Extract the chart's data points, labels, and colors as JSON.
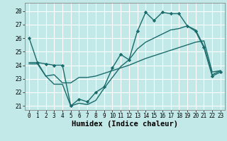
{
  "xlabel": "Humidex (Indice chaleur)",
  "bg_color": "#c2e8e8",
  "grid_color": "#ffffff",
  "line_color": "#1a6b6b",
  "ylim": [
    20.7,
    28.6
  ],
  "xlim": [
    -0.5,
    23.5
  ],
  "yticks": [
    21,
    22,
    23,
    24,
    25,
    26,
    27,
    28
  ],
  "xticks": [
    0,
    1,
    2,
    3,
    4,
    5,
    6,
    7,
    8,
    9,
    10,
    11,
    12,
    13,
    14,
    15,
    16,
    17,
    18,
    19,
    20,
    21,
    22,
    23
  ],
  "line1_x": [
    0,
    1,
    2,
    3,
    4,
    5,
    6,
    7,
    8,
    9,
    10,
    11,
    12,
    13,
    14,
    15,
    16,
    17,
    18,
    19,
    20,
    21,
    22,
    23
  ],
  "line1_y": [
    26.0,
    24.2,
    24.1,
    24.0,
    24.0,
    21.0,
    21.5,
    21.3,
    22.0,
    22.4,
    23.8,
    24.8,
    24.4,
    26.5,
    27.9,
    27.3,
    27.9,
    27.8,
    27.8,
    26.9,
    26.5,
    25.3,
    23.2,
    23.5
  ],
  "line2_x": [
    0,
    1,
    2,
    3,
    4,
    5,
    6,
    7,
    8,
    9,
    10,
    11,
    12,
    13,
    14,
    15,
    16,
    17,
    18,
    19,
    20,
    21,
    22,
    23
  ],
  "line2_y": [
    24.1,
    24.1,
    23.2,
    23.3,
    22.7,
    22.7,
    23.1,
    23.1,
    23.2,
    23.4,
    23.6,
    23.8,
    24.0,
    24.25,
    24.5,
    24.7,
    24.9,
    25.1,
    25.3,
    25.5,
    25.7,
    25.8,
    23.5,
    23.6
  ],
  "line3_x": [
    0,
    1,
    2,
    3,
    4,
    5,
    6,
    7,
    8,
    9,
    10,
    11,
    12,
    13,
    14,
    15,
    16,
    17,
    18,
    19,
    20,
    21,
    22,
    23
  ],
  "line3_y": [
    24.2,
    24.2,
    23.2,
    22.6,
    22.6,
    21.0,
    21.2,
    21.1,
    21.4,
    22.3,
    23.1,
    23.9,
    24.4,
    25.2,
    25.7,
    26.0,
    26.3,
    26.6,
    26.7,
    26.9,
    26.6,
    25.4,
    23.3,
    23.6
  ],
  "marker_style": "D",
  "marker_size": 2.2,
  "line_width": 1.0,
  "tick_fontsize": 5.5,
  "xlabel_fontsize": 7.5
}
